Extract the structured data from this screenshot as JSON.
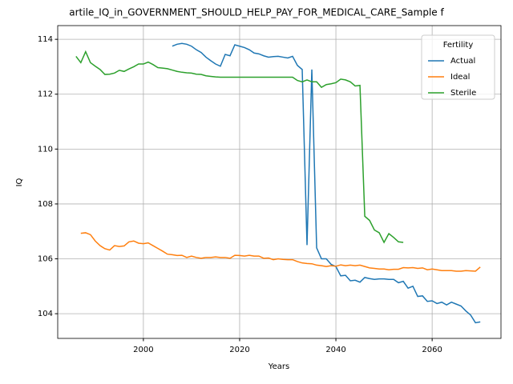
{
  "chart_data": {
    "type": "line",
    "title": "artile_IQ_in_GOVERNMENT_SHOULD_HELP_PAY_FOR_MEDICAL_CARE_Sample f",
    "xlabel": "Years",
    "ylabel": "IQ",
    "x": [
      1986,
      1987,
      1988,
      1989,
      1990,
      1991,
      1992,
      1993,
      1994,
      1995,
      1996,
      1997,
      1998,
      1999,
      2000,
      2001,
      2002,
      2003,
      2004,
      2005,
      2006,
      2007,
      2008,
      2009,
      2010,
      2011,
      2012,
      2013,
      2014,
      2015,
      2016,
      2017,
      2018,
      2019,
      2020,
      2021,
      2022,
      2023,
      2024,
      2025,
      2026,
      2027,
      2028,
      2029,
      2030,
      2031,
      2032,
      2033,
      2034,
      2035,
      2036,
      2037,
      2038,
      2039,
      2040,
      2041,
      2042,
      2043,
      2044,
      2045,
      2046,
      2047,
      2048,
      2049,
      2050,
      2051,
      2052,
      2053,
      2054,
      2055,
      2056,
      2057,
      2058,
      2059,
      2060,
      2061,
      2062,
      2063,
      2064,
      2065,
      2066,
      2067,
      2068,
      2069,
      2070
    ],
    "series": [
      {
        "name": "Actual",
        "color": "#1f77b4",
        "values": [
          null,
          null,
          null,
          null,
          null,
          null,
          null,
          null,
          null,
          null,
          null,
          null,
          null,
          null,
          null,
          null,
          null,
          null,
          null,
          null,
          113.75,
          113.82,
          113.85,
          113.82,
          113.75,
          113.62,
          113.52,
          113.35,
          113.22,
          113.1,
          113.02,
          113.45,
          113.4,
          113.8,
          113.75,
          113.7,
          113.62,
          113.5,
          113.47,
          113.4,
          113.35,
          113.37,
          113.38,
          113.35,
          113.32,
          113.38,
          113.05,
          112.9,
          106.5,
          112.9,
          106.4,
          106.0,
          106.0,
          105.8,
          105.72,
          105.38,
          105.4,
          105.2,
          105.22,
          105.15,
          105.32,
          105.28,
          105.25,
          105.27,
          105.27,
          105.25,
          105.25,
          105.13,
          105.18,
          104.93,
          105.0,
          104.63,
          104.65,
          104.45,
          104.47,
          104.37,
          104.42,
          104.32,
          104.42,
          104.35,
          104.28,
          104.1,
          103.95,
          103.67,
          103.7
        ]
      },
      {
        "name": "Ideal",
        "color": "#ff7f0e",
        "values": [
          null,
          106.93,
          106.95,
          106.88,
          106.65,
          106.48,
          106.37,
          106.32,
          106.48,
          106.45,
          106.47,
          106.62,
          106.65,
          106.57,
          106.55,
          106.58,
          106.48,
          106.38,
          106.28,
          106.17,
          106.15,
          106.12,
          106.13,
          106.05,
          106.1,
          106.05,
          106.02,
          106.05,
          106.05,
          106.07,
          106.05,
          106.05,
          106.02,
          106.13,
          106.12,
          106.1,
          106.13,
          106.1,
          106.1,
          106.02,
          106.03,
          105.97,
          106.0,
          105.98,
          105.97,
          105.97,
          105.9,
          105.85,
          105.83,
          105.82,
          105.77,
          105.75,
          105.72,
          105.75,
          105.73,
          105.78,
          105.75,
          105.77,
          105.75,
          105.77,
          105.72,
          105.67,
          105.65,
          105.63,
          105.63,
          105.6,
          105.62,
          105.62,
          105.68,
          105.67,
          105.68,
          105.65,
          105.67,
          105.6,
          105.63,
          105.6,
          105.57,
          105.57,
          105.57,
          105.55,
          105.55,
          105.57,
          105.56,
          105.55,
          105.7
        ]
      },
      {
        "name": "Sterile",
        "color": "#2ca02c",
        "values": [
          113.38,
          113.15,
          113.55,
          113.15,
          113.02,
          112.9,
          112.72,
          112.73,
          112.77,
          112.87,
          112.83,
          112.92,
          113.0,
          113.1,
          113.1,
          113.17,
          113.08,
          112.97,
          112.95,
          112.93,
          112.88,
          112.83,
          112.8,
          112.78,
          112.77,
          112.73,
          112.72,
          112.67,
          112.65,
          112.63,
          112.62,
          112.62,
          112.62,
          112.62,
          112.62,
          112.62,
          112.62,
          112.62,
          112.62,
          112.62,
          112.62,
          112.62,
          112.62,
          112.62,
          112.62,
          112.62,
          112.5,
          112.45,
          112.52,
          112.45,
          112.45,
          112.25,
          112.35,
          112.38,
          112.42,
          112.55,
          112.52,
          112.45,
          112.3,
          112.32,
          107.55,
          107.4,
          107.05,
          106.95,
          106.6,
          106.92,
          106.78,
          106.62,
          106.6,
          null,
          null,
          null,
          null,
          null,
          null,
          null,
          null,
          null,
          null,
          null,
          null,
          null,
          null,
          null,
          null
        ]
      }
    ],
    "legend_title": "Fertility",
    "legend": "upper right",
    "grid": true,
    "xlim": [
      1982.2,
      2074.3
    ],
    "xticks": [
      2000,
      2020,
      2040,
      2060
    ],
    "ylim": [
      103.1,
      114.5
    ],
    "yticks": [
      104,
      106,
      108,
      110,
      112,
      114
    ]
  }
}
